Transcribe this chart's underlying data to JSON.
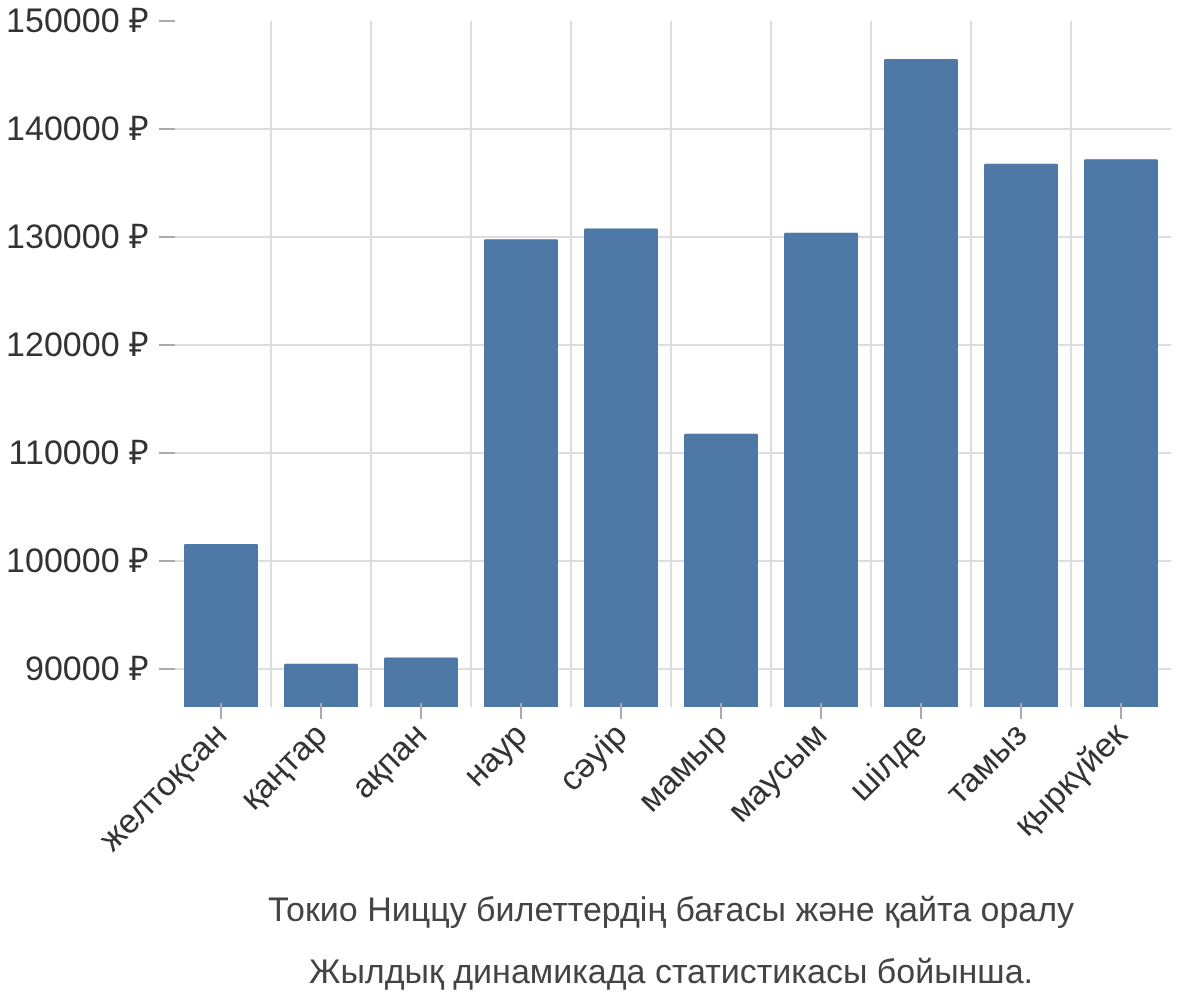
{
  "chart_data": {
    "type": "bar",
    "title": "Токио Ниццу билеттердің бағасы және қайта оралу",
    "subtitle": "Жылдық динамикада статистикасы бойынша.",
    "categories": [
      "желтоқсан",
      "қаңтар",
      "ақпан",
      "наур",
      "сәуір",
      "мамыр",
      "маусым",
      "шілде",
      "тамыз",
      "қыркүйек"
    ],
    "values": [
      101500,
      90400,
      91000,
      129700,
      130700,
      111700,
      130300,
      146400,
      136700,
      137100
    ],
    "color": "#4e79a7",
    "ylim": [
      86500,
      150000
    ],
    "yticks": [
      {
        "value": 90000,
        "label": "90000 ₽"
      },
      {
        "value": 100000,
        "label": "100000 ₽"
      },
      {
        "value": 110000,
        "label": "110000 ₽"
      },
      {
        "value": 120000,
        "label": "120000 ₽"
      },
      {
        "value": 130000,
        "label": "130000 ₽"
      },
      {
        "value": 140000,
        "label": "140000 ₽"
      },
      {
        "value": 150000,
        "label": "150000 ₽"
      }
    ],
    "grid": true
  }
}
